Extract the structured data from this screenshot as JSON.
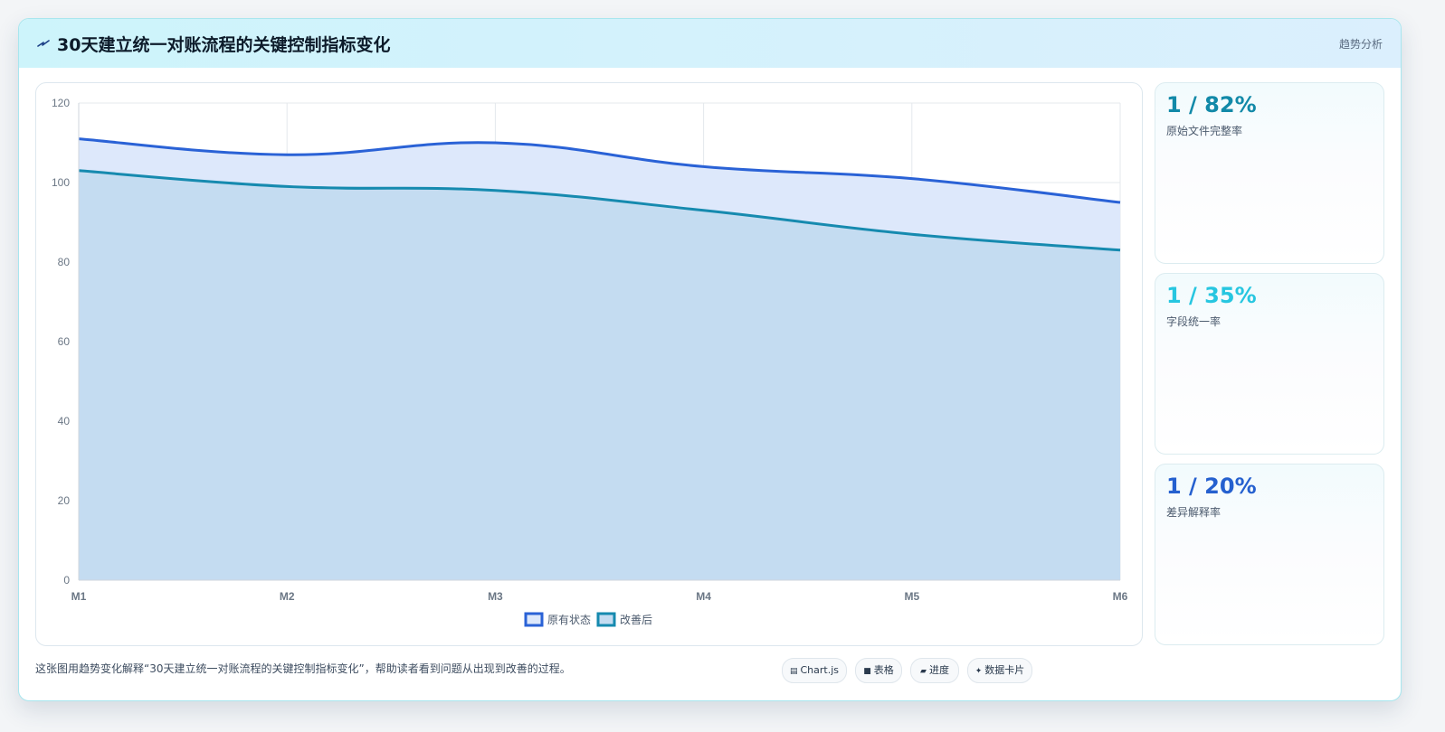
{
  "header": {
    "icon": "lightning-icon",
    "title": "30天建立统一对账流程的关键控制指标变化",
    "right_label": "趋势分析"
  },
  "chart_data": {
    "type": "area",
    "categories": [
      "M1",
      "M2",
      "M3",
      "M4",
      "M5",
      "M6"
    ],
    "series": [
      {
        "name": "原有状态",
        "values": [
          111,
          107,
          110,
          104,
          101,
          95
        ],
        "color": "#2a62d6",
        "fill": "#dde8fb"
      },
      {
        "name": "改善后",
        "values": [
          103,
          99,
          98,
          93,
          87,
          83
        ],
        "color": "#168aaf",
        "fill": "#c4dcf1"
      }
    ],
    "ylim": [
      0,
      120
    ],
    "yticks": [
      0,
      20,
      40,
      60,
      80,
      100,
      120
    ],
    "grid": true,
    "legend_position": "bottom-center"
  },
  "metrics": [
    {
      "value": "1 / 82%",
      "label": "原始文件完整率",
      "color": "#1289a8"
    },
    {
      "value": "1 / 35%",
      "label": "字段统一率",
      "color": "#27c6e0"
    },
    {
      "value": "1 / 20%",
      "label": "差异解释率",
      "color": "#2560cf"
    }
  ],
  "footer": {
    "caption": "这张图用趋势变化解释“30天建立统一对账流程的关键控制指标变化”，帮助读者看到问题从出现到改善的过程。",
    "tags": [
      {
        "icon": "chart-icon",
        "glyph": "▤",
        "label": "Chart.js"
      },
      {
        "icon": "table-icon",
        "glyph": "■",
        "label": "表格"
      },
      {
        "icon": "progress-icon",
        "glyph": "▰",
        "label": "进度"
      },
      {
        "icon": "sparkle-icon",
        "glyph": "✦",
        "label": "数据卡片"
      }
    ]
  }
}
